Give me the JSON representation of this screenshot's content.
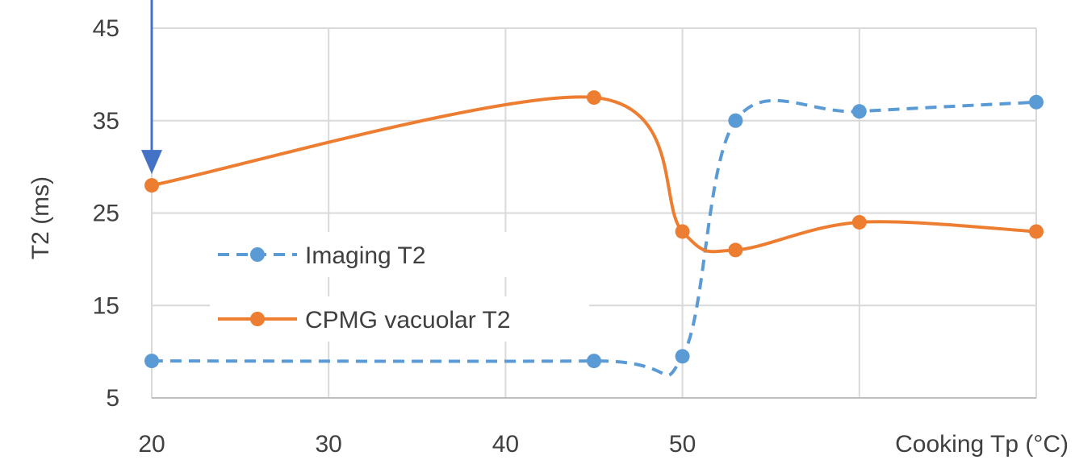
{
  "chart_data": {
    "type": "line",
    "xlabel": "Cooking Tp (°C)",
    "ylabel": "T2 (ms)",
    "xlim": [
      20,
      70
    ],
    "ylim": [
      5,
      45
    ],
    "x_ticks": [
      20,
      30,
      40,
      50
    ],
    "y_ticks": [
      45,
      35,
      25,
      15,
      5
    ],
    "grid": true,
    "legend_position": "left",
    "series": [
      {
        "name": "Imaging T2",
        "color": "#5B9BD5",
        "line_style": "dashed",
        "marker": "circle",
        "x": [
          20,
          45,
          50,
          53,
          60,
          70
        ],
        "y": [
          9,
          9,
          9.5,
          35,
          36,
          37
        ]
      },
      {
        "name": "CPMG vacuolar T2",
        "color": "#ED7D31",
        "line_style": "solid",
        "marker": "circle",
        "x": [
          20,
          45,
          50,
          53,
          60,
          70
        ],
        "y": [
          28,
          37.5,
          23,
          21,
          24,
          23
        ]
      }
    ],
    "annotation": {
      "type": "arrow",
      "color": "#4472C4",
      "points_to": {
        "x": 20,
        "y": 28
      }
    }
  }
}
